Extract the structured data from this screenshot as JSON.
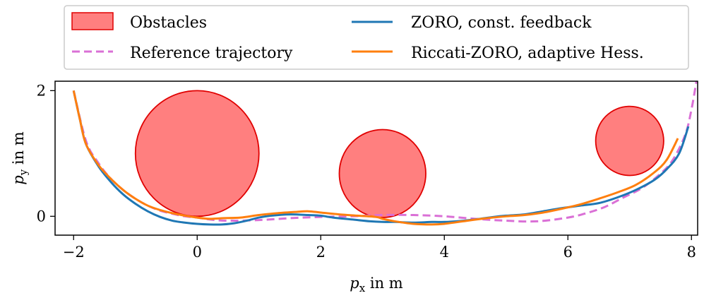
{
  "chart_data": {
    "type": "line",
    "title": "",
    "xlabel": "p_x in m",
    "ylabel": "p_y in m",
    "xlabel_main": "p",
    "xlabel_sub": "x",
    "xlabel_rest": " in m",
    "ylabel_main": "p",
    "ylabel_sub": "y",
    "ylabel_rest": " in m",
    "xlim": [
      -2.3,
      8.1
    ],
    "ylim": [
      -0.3,
      2.15
    ],
    "xticks": [
      -2,
      0,
      2,
      4,
      6,
      8
    ],
    "xtick_labels": [
      "−2",
      "0",
      "2",
      "4",
      "6",
      "8"
    ],
    "yticks": [
      0,
      2
    ],
    "ytick_labels": [
      "0",
      "2"
    ],
    "grid": false,
    "legend_position": "top-center",
    "obstacles": {
      "name": "Obstacles",
      "color": "#ff7f7f",
      "edge_color": "#e00000",
      "circles": [
        {
          "cx": 0,
          "cy": 1.0,
          "r": 1.0
        },
        {
          "cx": 3.0,
          "cy": 0.68,
          "r": 0.7
        },
        {
          "cx": 7.0,
          "cy": 1.2,
          "r": 0.55
        }
      ]
    },
    "series": [
      {
        "name": "Reference trajectory",
        "color": "#da70d6",
        "dashed": true,
        "x": [
          -2.0,
          -1.8,
          -1.6,
          -1.4,
          -1.2,
          -1.0,
          -0.8,
          -0.6,
          -0.4,
          -0.2,
          0.0,
          0.2,
          0.5,
          1.0,
          1.5,
          2.0,
          2.5,
          3.0,
          3.5,
          4.0,
          4.5,
          5.0,
          5.5,
          6.0,
          6.3,
          6.6,
          6.9,
          7.2,
          7.5,
          7.7,
          7.9,
          8.0,
          8.08
        ],
        "y": [
          2.0,
          1.2,
          0.85,
          0.6,
          0.42,
          0.28,
          0.17,
          0.09,
          0.04,
          0.0,
          -0.02,
          -0.05,
          -0.07,
          -0.06,
          -0.03,
          -0.01,
          0.0,
          0.02,
          0.02,
          0.0,
          -0.04,
          -0.07,
          -0.08,
          -0.02,
          0.05,
          0.15,
          0.3,
          0.45,
          0.68,
          0.9,
          1.3,
          1.7,
          2.15
        ]
      },
      {
        "name": "ZORO, const. feedback",
        "color": "#1f77b4",
        "dashed": false,
        "x": [
          -2.0,
          -1.9,
          -1.8,
          -1.6,
          -1.4,
          -1.2,
          -1.0,
          -0.8,
          -0.6,
          -0.4,
          -0.2,
          0.0,
          0.2,
          0.4,
          0.6,
          0.8,
          1.0,
          1.2,
          1.5,
          1.8,
          2.0,
          2.2,
          2.5,
          2.8,
          3.0,
          3.2,
          3.5,
          3.8,
          4.0,
          4.2,
          4.5,
          4.8,
          5.0,
          5.3,
          5.6,
          5.9,
          6.2,
          6.5,
          6.8,
          7.1,
          7.4,
          7.6,
          7.8,
          7.95
        ],
        "y": [
          2.0,
          1.55,
          1.15,
          0.8,
          0.55,
          0.35,
          0.2,
          0.08,
          -0.01,
          -0.07,
          -0.1,
          -0.12,
          -0.13,
          -0.13,
          -0.11,
          -0.07,
          -0.02,
          0.01,
          0.03,
          0.02,
          0.01,
          -0.02,
          -0.05,
          -0.08,
          -0.09,
          -0.09,
          -0.1,
          -0.09,
          -0.09,
          -0.08,
          -0.05,
          -0.01,
          0.01,
          0.03,
          0.08,
          0.13,
          0.17,
          0.21,
          0.3,
          0.42,
          0.58,
          0.75,
          1.0,
          1.43
        ]
      },
      {
        "name": "Riccati-ZORO, adaptive Hess.",
        "color": "#ff7f0e",
        "dashed": false,
        "x": [
          -2.0,
          -1.9,
          -1.8,
          -1.6,
          -1.4,
          -1.2,
          -1.0,
          -0.8,
          -0.6,
          -0.4,
          -0.2,
          0.0,
          0.2,
          0.4,
          0.7,
          1.0,
          1.3,
          1.6,
          1.8,
          2.0,
          2.3,
          2.6,
          2.9,
          3.0,
          3.2,
          3.5,
          3.8,
          4.0,
          4.3,
          4.6,
          5.0,
          5.3,
          5.6,
          5.9,
          6.2,
          6.5,
          6.8,
          7.1,
          7.4,
          7.6,
          7.78
        ],
        "y": [
          2.0,
          1.55,
          1.15,
          0.82,
          0.6,
          0.42,
          0.28,
          0.17,
          0.1,
          0.05,
          0.01,
          -0.02,
          -0.04,
          -0.03,
          -0.02,
          0.02,
          0.05,
          0.07,
          0.08,
          0.06,
          0.03,
          0.01,
          -0.01,
          -0.04,
          -0.08,
          -0.12,
          -0.13,
          -0.12,
          -0.08,
          -0.04,
          0.0,
          0.02,
          0.06,
          0.12,
          0.19,
          0.28,
          0.38,
          0.5,
          0.7,
          0.9,
          1.24
        ]
      }
    ]
  }
}
